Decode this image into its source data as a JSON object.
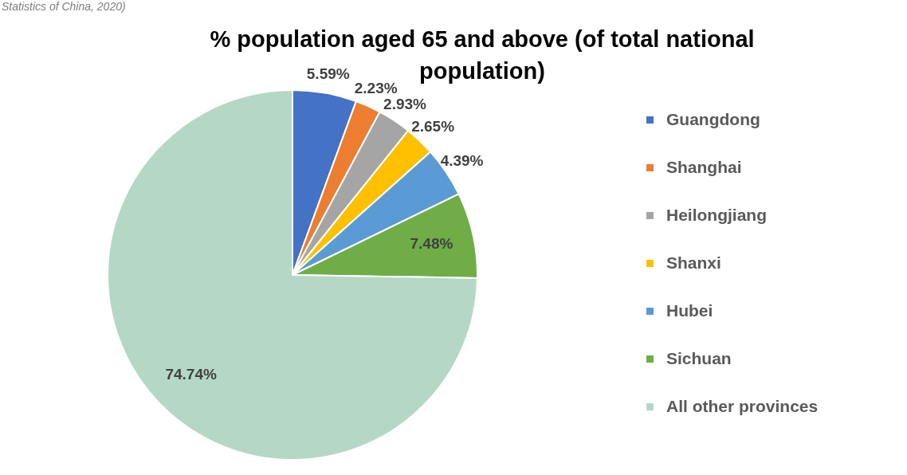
{
  "chart_data": {
    "type": "pie",
    "title": "%  population aged 65 and above (of total national population)",
    "categories": [
      "Guangdong",
      "Shanghai",
      "Heilongjiang",
      "Shanxi",
      "Hubei",
      "Sichuan",
      "All other provinces"
    ],
    "values": [
      5.59,
      2.23,
      2.93,
      2.65,
      4.39,
      7.48,
      74.74
    ],
    "value_labels": [
      "5.59%",
      "2.23%",
      "2.93%",
      "2.65%",
      "4.39%",
      "7.48%",
      "74.74%"
    ],
    "colors": [
      "#4472c4",
      "#ed7d31",
      "#a5a5a5",
      "#ffc000",
      "#5b9bd5",
      "#70ad47",
      "#b5d8c6"
    ],
    "legend": "right",
    "annotations": [
      "Statistics of China, 2020)"
    ]
  }
}
